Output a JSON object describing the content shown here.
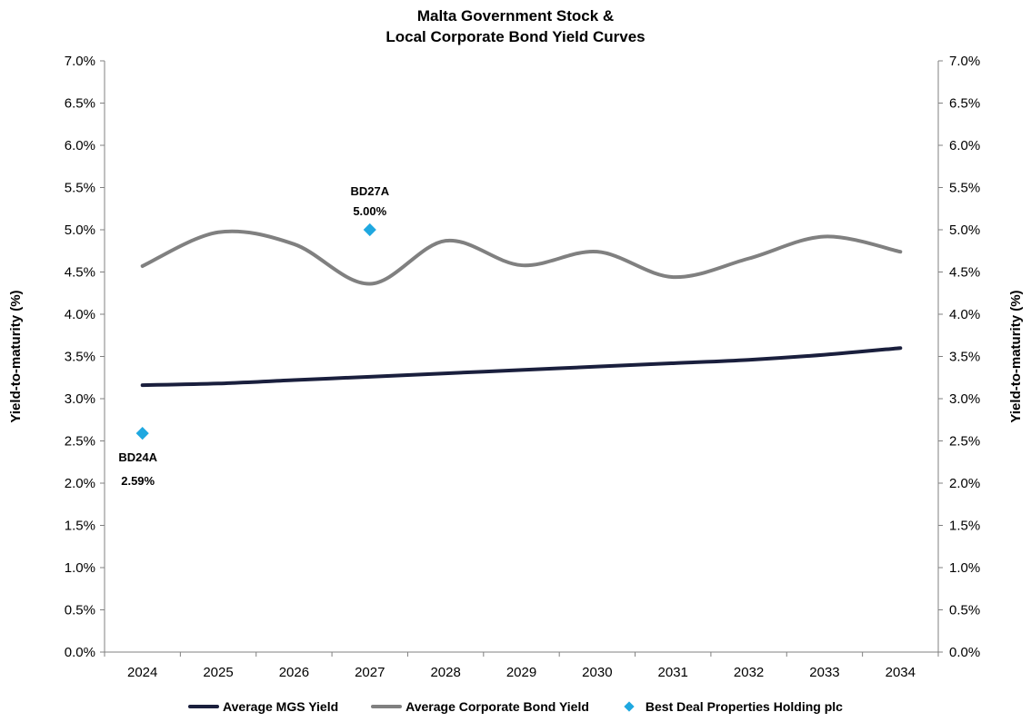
{
  "chart_data": {
    "type": "line",
    "title_line1": "Malta Government Stock &",
    "title_line2": "Local Corporate Bond Yield Curves",
    "ylabel_left": "Yield-to-maturity (%)",
    "ylabel_right": "Yield-to-maturity (%)",
    "ylim": [
      0,
      7
    ],
    "yticks": [
      "0.0%",
      "0.5%",
      "1.0%",
      "1.5%",
      "2.0%",
      "2.5%",
      "3.0%",
      "3.5%",
      "4.0%",
      "4.5%",
      "5.0%",
      "5.5%",
      "6.0%",
      "6.5%",
      "7.0%"
    ],
    "categories": [
      "2024",
      "2025",
      "2026",
      "2027",
      "2028",
      "2029",
      "2030",
      "2031",
      "2032",
      "2033",
      "2034"
    ],
    "series": [
      {
        "name": "Average MGS Yield",
        "color": "#1a1f3d",
        "values": [
          3.16,
          3.18,
          3.22,
          3.26,
          3.3,
          3.34,
          3.38,
          3.42,
          3.46,
          3.52,
          3.6
        ]
      },
      {
        "name": "Average Corporate Bond Yield",
        "color": "#808080",
        "values": [
          4.57,
          4.97,
          4.83,
          4.36,
          4.87,
          4.58,
          4.74,
          4.44,
          4.66,
          4.92,
          4.74
        ]
      }
    ],
    "points": {
      "name": "Best Deal Properties Holding plc",
      "color": "#1fa8e0",
      "items": [
        {
          "x": "2024",
          "y": 2.59,
          "label": "BD24A",
          "value_label": "2.59%"
        },
        {
          "x": "2027",
          "y": 5.0,
          "label": "BD27A",
          "value_label": "5.00%"
        }
      ]
    },
    "grid": false,
    "legend_position": "bottom"
  }
}
